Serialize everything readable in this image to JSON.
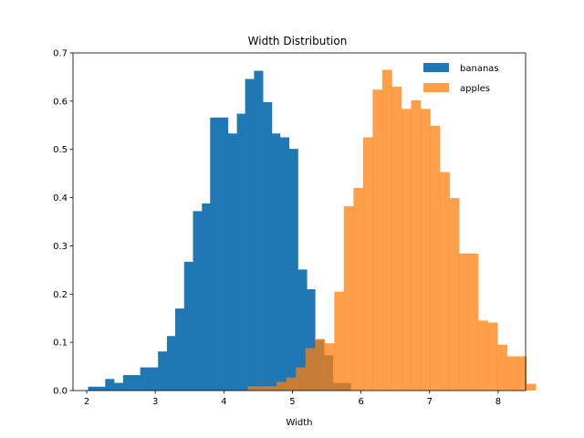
{
  "chart_data": {
    "type": "bar",
    "title": "Width Distribution",
    "xlabel": "Width",
    "ylabel": "",
    "xlim": [
      1.8,
      8.4
    ],
    "ylim": [
      0,
      0.7
    ],
    "xticks": [
      2,
      3,
      4,
      5,
      6,
      7,
      8
    ],
    "yticks": [
      0.0,
      0.1,
      0.2,
      0.3,
      0.4,
      0.5,
      0.6,
      0.7
    ],
    "grid": false,
    "legend": "top-right",
    "series": [
      {
        "name": "bananas",
        "color": "#1f77b4",
        "opacity": 1.0,
        "bins": [
          [
            2.02,
            2.15,
            0.008
          ],
          [
            2.15,
            2.27,
            0.008
          ],
          [
            2.27,
            2.4,
            0.024
          ],
          [
            2.4,
            2.53,
            0.016
          ],
          [
            2.53,
            2.66,
            0.032
          ],
          [
            2.66,
            2.78,
            0.032
          ],
          [
            2.78,
            2.91,
            0.048
          ],
          [
            2.91,
            3.04,
            0.048
          ],
          [
            3.04,
            3.17,
            0.081
          ],
          [
            3.17,
            3.29,
            0.113
          ],
          [
            3.29,
            3.42,
            0.17
          ],
          [
            3.42,
            3.55,
            0.267
          ],
          [
            3.55,
            3.68,
            0.372
          ],
          [
            3.68,
            3.8,
            0.388
          ],
          [
            3.8,
            3.93,
            0.566
          ],
          [
            3.93,
            4.06,
            0.566
          ],
          [
            4.06,
            4.19,
            0.533
          ],
          [
            4.19,
            4.31,
            0.574
          ],
          [
            4.31,
            4.44,
            0.646
          ],
          [
            4.44,
            4.57,
            0.663
          ],
          [
            4.57,
            4.7,
            0.598
          ],
          [
            4.7,
            4.82,
            0.533
          ],
          [
            4.82,
            4.95,
            0.525
          ],
          [
            4.95,
            5.08,
            0.501
          ],
          [
            5.08,
            5.21,
            0.251
          ],
          [
            5.21,
            5.33,
            0.21
          ],
          [
            5.33,
            5.46,
            0.105
          ],
          [
            5.46,
            5.59,
            0.073
          ],
          [
            5.59,
            5.72,
            0.016
          ],
          [
            5.72,
            5.85,
            0.016
          ]
        ]
      },
      {
        "name": "apples",
        "color": "#ff7f0e",
        "opacity": 0.75,
        "bins": [
          [
            4.35,
            4.49,
            0.009
          ],
          [
            4.49,
            4.63,
            0.009
          ],
          [
            4.63,
            4.77,
            0.009
          ],
          [
            4.77,
            4.91,
            0.018
          ],
          [
            4.91,
            5.05,
            0.027
          ],
          [
            5.05,
            5.19,
            0.048
          ],
          [
            5.19,
            5.33,
            0.088
          ],
          [
            5.33,
            5.47,
            0.107
          ],
          [
            5.47,
            5.61,
            0.098
          ],
          [
            5.61,
            5.75,
            0.205
          ],
          [
            5.75,
            5.89,
            0.382
          ],
          [
            5.89,
            6.03,
            0.42
          ],
          [
            6.03,
            6.17,
            0.525
          ],
          [
            6.17,
            6.31,
            0.624
          ],
          [
            6.31,
            6.45,
            0.665
          ],
          [
            6.45,
            6.59,
            0.63
          ],
          [
            6.59,
            6.73,
            0.584
          ],
          [
            6.73,
            6.87,
            0.602
          ],
          [
            6.87,
            7.01,
            0.584
          ],
          [
            7.01,
            7.15,
            0.549
          ],
          [
            7.15,
            7.29,
            0.453
          ],
          [
            7.29,
            7.43,
            0.399
          ],
          [
            7.43,
            7.57,
            0.284
          ],
          [
            7.57,
            7.71,
            0.284
          ],
          [
            7.71,
            7.85,
            0.145
          ],
          [
            7.85,
            7.99,
            0.141
          ],
          [
            7.99,
            8.13,
            0.095
          ],
          [
            8.13,
            8.27,
            0.071
          ],
          [
            8.27,
            8.41,
            0.071
          ],
          [
            8.41,
            8.55,
            0.014
          ]
        ]
      }
    ]
  }
}
